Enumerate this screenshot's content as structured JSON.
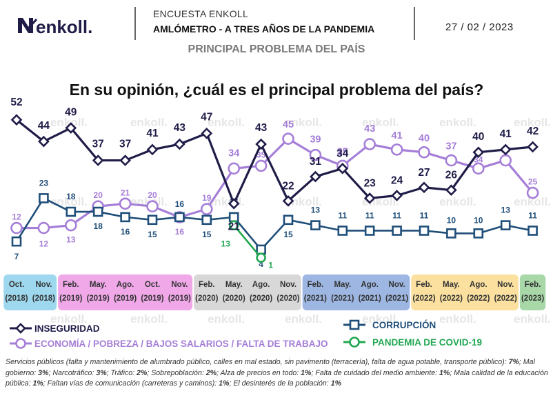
{
  "header": {
    "brand": "enkoll.",
    "survey_name": "ENCUESTA ENKOLL",
    "survey_title": "AMLÓMETRO - A TRES AÑOS DE LA PANDEMIA",
    "date": "27 / 02 / 2023",
    "section_title": "PRINCIPAL PROBLEMA DEL PAÍS"
  },
  "question": "En su opinión, ¿cuál es el principal problema del país?",
  "watermark": "enkoll.",
  "colors": {
    "inseguridad": "#1f1c48",
    "corrupcion": "#1f4e79",
    "economia": "#a57ed8",
    "covid": "#21a651",
    "band_2018": "#9ed8ee",
    "band_2019": "#f0a8e8",
    "band_2020": "#d8d8d8",
    "band_2021": "#9db6e2",
    "band_2022": "#fbe0a0",
    "band_2023": "#a8d8a8"
  },
  "chart_data": {
    "type": "line",
    "x": [
      "Oct.",
      "Nov.",
      "Feb.",
      "May.",
      "Ago.",
      "Oct.",
      "Nov.",
      "Feb.",
      "May.",
      "Ago.",
      "Nov.",
      "Feb.",
      "May.",
      "Ago.",
      "Nov.",
      "Feb.",
      "May.",
      "Ago.",
      "Nov.",
      "Feb."
    ],
    "x_years": [
      "(2018)",
      "(2018)",
      "(2019)",
      "(2019)",
      "(2019)",
      "(2019)",
      "(2019)",
      "(2020)",
      "(2020)",
      "(2020)",
      "(2020)",
      "(2021)",
      "(2021)",
      "(2021)",
      "(2021)",
      "(2022)",
      "(2022)",
      "(2022)",
      "(2022)",
      "(2023)"
    ],
    "year_groups": [
      {
        "start": 0,
        "end": 1,
        "color_key": "band_2018"
      },
      {
        "start": 2,
        "end": 6,
        "color_key": "band_2019"
      },
      {
        "start": 7,
        "end": 10,
        "color_key": "band_2020"
      },
      {
        "start": 11,
        "end": 14,
        "color_key": "band_2021"
      },
      {
        "start": 15,
        "end": 18,
        "color_key": "band_2022"
      },
      {
        "start": 19,
        "end": 19,
        "color_key": "band_2023"
      }
    ],
    "series": [
      {
        "name": "INSEGURIDAD",
        "key": "inseguridad",
        "marker": "diamond",
        "values": [
          52,
          44,
          49,
          37,
          37,
          41,
          43,
          47,
          21,
          43,
          22,
          31,
          34,
          23,
          24,
          27,
          26,
          40,
          41,
          42
        ]
      },
      {
        "name": "CORRUPCIÓN",
        "key": "corrupcion",
        "marker": "square",
        "values": [
          7,
          23,
          18,
          18,
          16,
          15,
          16,
          15,
          16,
          4,
          15,
          13,
          11,
          11,
          11,
          11,
          10,
          10,
          13,
          11
        ]
      },
      {
        "name": "ECONOMÍA / POBREZA / BAJOS SALARIOS / FALTA DE TRABAJO",
        "key": "economia",
        "marker": "circle",
        "values": [
          12,
          12,
          13,
          20,
          21,
          20,
          16,
          19,
          34,
          35,
          45,
          39,
          35,
          43,
          41,
          40,
          37,
          34,
          37,
          25
        ]
      },
      {
        "name": "PANDEMIA DE COVID-19",
        "key": "covid",
        "marker": "circle",
        "values": [
          null,
          null,
          null,
          null,
          null,
          null,
          null,
          null,
          13,
          1,
          null,
          null,
          null,
          null,
          null,
          null,
          null,
          null,
          null,
          null
        ]
      }
    ],
    "legend_position": "bottom",
    "ylim": [
      0,
      55
    ]
  },
  "footnote": [
    {
      "t": "Servicios públicos (falta y mantenimiento de alumbrado público, calles en mal estado, sin pavimento (terracería), falta de agua potable, transporte público): ",
      "b": false
    },
    {
      "t": "7%",
      "b": true
    },
    {
      "t": "; Mal gobierno: ",
      "b": false
    },
    {
      "t": "3%",
      "b": true
    },
    {
      "t": "; Narcotráfico: ",
      "b": false
    },
    {
      "t": "3%",
      "b": true
    },
    {
      "t": "; Tráfico: ",
      "b": false
    },
    {
      "t": "2%",
      "b": true
    },
    {
      "t": "; Sobrepoblación: ",
      "b": false
    },
    {
      "t": "2%",
      "b": true
    },
    {
      "t": "; Alza de precios en todo: ",
      "b": false
    },
    {
      "t": "1%",
      "b": true
    },
    {
      "t": "; Falta de cuidado del medio ambiente: ",
      "b": false
    },
    {
      "t": "1%",
      "b": true
    },
    {
      "t": "; Mala calidad de la educación pública: ",
      "b": false
    },
    {
      "t": "1%",
      "b": true
    },
    {
      "t": "; Faltan vías de comunicación (carreteras y caminos): ",
      "b": false
    },
    {
      "t": "1%",
      "b": true
    },
    {
      "t": "; El desinterés de la población: ",
      "b": false
    },
    {
      "t": "1%",
      "b": true
    }
  ]
}
